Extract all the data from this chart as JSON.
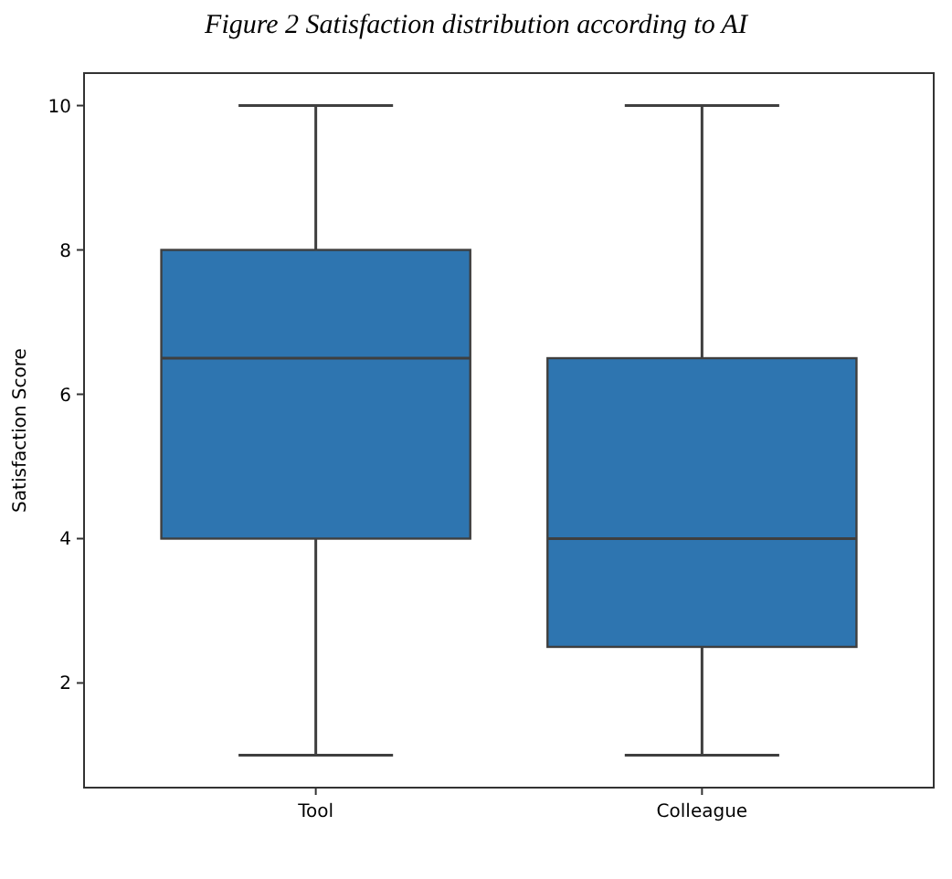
{
  "chart_data": {
    "type": "box",
    "title": "Figure 2  Satisfaction distribution according to AI",
    "ylabel": "Satisfaction Score",
    "categories": [
      "Tool",
      "Colleague"
    ],
    "color": "#2e75b0",
    "ylim": [
      0.55,
      10.45
    ],
    "yticks": [
      2,
      4,
      6,
      8,
      10
    ],
    "grid": false,
    "boxes": [
      {
        "low": 1,
        "q1": 4,
        "median": 6.5,
        "q3": 8,
        "high": 10
      },
      {
        "low": 1,
        "q1": 2.5,
        "median": 4,
        "q3": 6.5,
        "high": 10
      }
    ]
  }
}
